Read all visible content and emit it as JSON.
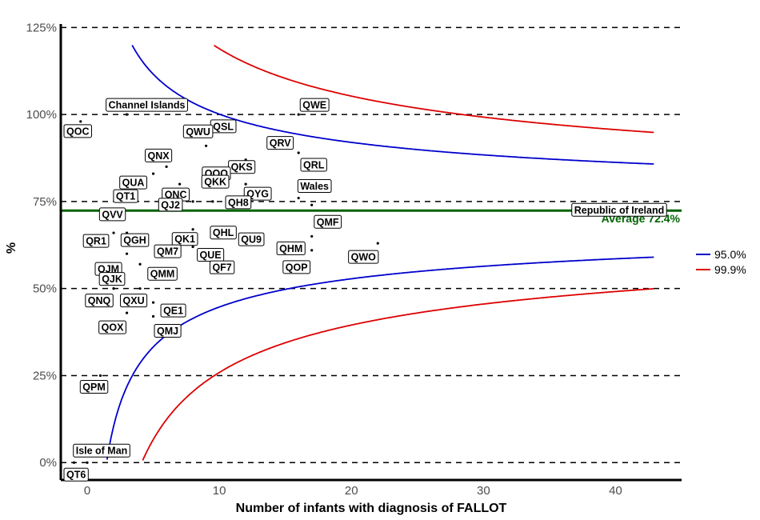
{
  "chart_data": {
    "type": "scatter",
    "subtype": "funnel-plot",
    "title": "",
    "xlabel": "Number of infants with diagnosis of FALLOT",
    "ylabel": "%",
    "xlim": [
      -2,
      45
    ],
    "ylim": [
      -5,
      126
    ],
    "x_ticks": [
      0,
      10,
      20,
      30,
      40
    ],
    "y_ticks": [
      {
        "value": 0,
        "label": "0%"
      },
      {
        "value": 25,
        "label": "25%"
      },
      {
        "value": 50,
        "label": "50%"
      },
      {
        "value": 75,
        "label": "75%"
      },
      {
        "value": 100,
        "label": "100%"
      },
      {
        "value": 125,
        "label": "125%"
      }
    ],
    "average": {
      "value": 72.4,
      "label": "Average 72.4%",
      "color": "#006400"
    },
    "limits": [
      {
        "name": "95.0%",
        "z": 1.96,
        "color": "#0000cc"
      },
      {
        "name": "99.9%",
        "z": 3.29,
        "color": "#dd0000"
      }
    ],
    "legend_position": "right",
    "points": [
      {
        "label": "Channel Islands",
        "x": 3,
        "y": 100
      },
      {
        "label": "QOC",
        "x": -0.5,
        "y": 98
      },
      {
        "label": "QSL",
        "x": 10,
        "y": 98
      },
      {
        "label": "QWE",
        "x": 16,
        "y": 100
      },
      {
        "label": "QRV",
        "x": 14,
        "y": 93
      },
      {
        "label": "QWU",
        "x": 9,
        "y": 91
      },
      {
        "label": "QNX",
        "x": 6,
        "y": 85
      },
      {
        "label": "QKS",
        "x": 12,
        "y": 87
      },
      {
        "label": "QOQ",
        "x": 10.5,
        "y": 84
      },
      {
        "label": "QUA",
        "x": 5,
        "y": 83
      },
      {
        "label": "QYG",
        "x": 12,
        "y": 80
      },
      {
        "label": "QRL",
        "x": 16,
        "y": 89
      },
      {
        "label": "QNC",
        "x": 7,
        "y": 80
      },
      {
        "label": "QKK",
        "x": 10,
        "y": 83
      },
      {
        "label": "QT1",
        "x": 4,
        "y": 80
      },
      {
        "label": "Wales",
        "x": 16,
        "y": 76
      },
      {
        "label": "QJ2",
        "x": 8,
        "y": 75
      },
      {
        "label": "QH8",
        "x": 9.5,
        "y": 75
      },
      {
        "label": "Republic of Ireland",
        "x": 43,
        "y": 74
      },
      {
        "label": "QVV",
        "x": 3,
        "y": 75
      },
      {
        "label": "QMF",
        "x": 17,
        "y": 74
      },
      {
        "label": "QK1",
        "x": 8,
        "y": 67
      },
      {
        "label": "QHL",
        "x": 10,
        "y": 67
      },
      {
        "label": "QU9",
        "x": 10,
        "y": 66
      },
      {
        "label": "QR1",
        "x": 2,
        "y": 66
      },
      {
        "label": "QGH",
        "x": 3,
        "y": 66
      },
      {
        "label": "QHM",
        "x": 17,
        "y": 65
      },
      {
        "label": "QWO",
        "x": 22,
        "y": 63
      },
      {
        "label": "QUE",
        "x": 8,
        "y": 62
      },
      {
        "label": "QM7",
        "x": 7,
        "y": 63
      },
      {
        "label": "QJM",
        "x": 3,
        "y": 60
      },
      {
        "label": "QF7",
        "x": 9,
        "y": 60
      },
      {
        "label": "QOP",
        "x": 17,
        "y": 61
      },
      {
        "label": "QMM",
        "x": 4,
        "y": 57
      },
      {
        "label": "QJK",
        "x": 2,
        "y": 50
      },
      {
        "label": "QNQ",
        "x": 2,
        "y": 50
      },
      {
        "label": "QXU",
        "x": 4,
        "y": 50
      },
      {
        "label": "QE1",
        "x": 5,
        "y": 46
      },
      {
        "label": "QOX",
        "x": 3,
        "y": 43
      },
      {
        "label": "QMJ",
        "x": 5,
        "y": 42
      },
      {
        "label": "QPM",
        "x": 1,
        "y": 25
      },
      {
        "label": "Isle of Man",
        "x": 0,
        "y": 0
      },
      {
        "label": "QT6",
        "x": -1,
        "y": 0
      }
    ]
  }
}
